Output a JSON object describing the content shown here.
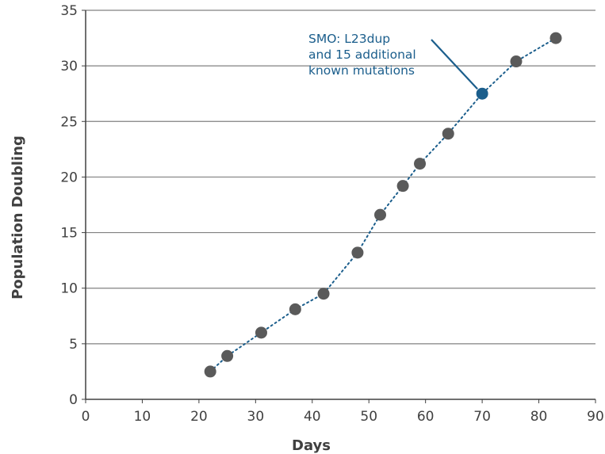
{
  "chart_data": {
    "type": "scatter",
    "title": "",
    "xlabel": "Days",
    "ylabel": "Population Doubling",
    "xlim": [
      0,
      90
    ],
    "ylim": [
      0,
      35
    ],
    "xticks": [
      0,
      10,
      20,
      30,
      40,
      50,
      60,
      70,
      80,
      90
    ],
    "yticks": [
      0,
      5,
      10,
      15,
      20,
      25,
      30,
      35
    ],
    "grid": "horizontal",
    "connector": "dotted",
    "series": [
      {
        "points": [
          {
            "x": 22,
            "y": 2.5
          },
          {
            "x": 25,
            "y": 3.9
          },
          {
            "x": 31,
            "y": 6.0
          },
          {
            "x": 37,
            "y": 8.1
          },
          {
            "x": 42,
            "y": 9.5
          },
          {
            "x": 48,
            "y": 13.2
          },
          {
            "x": 52,
            "y": 16.6
          },
          {
            "x": 56,
            "y": 19.2
          },
          {
            "x": 59,
            "y": 21.2
          },
          {
            "x": 64,
            "y": 23.9
          },
          {
            "x": 70,
            "y": 27.5
          },
          {
            "x": 76,
            "y": 30.4
          },
          {
            "x": 83,
            "y": 32.5
          }
        ]
      }
    ],
    "highlight": {
      "x": 70,
      "y": 27.5
    },
    "annotation": {
      "lines": [
        "SMO: L23dup",
        "and 15 additional",
        "known mutations"
      ],
      "target": {
        "x": 70,
        "y": 27.5
      }
    }
  },
  "colors": {
    "point": "#5a5a5a",
    "highlight": "#1b5e8c",
    "annotation": "#1b5e8c",
    "connector": "#1b5e8c",
    "grid": "#808080",
    "axis": "#404040",
    "text": "#404040"
  }
}
